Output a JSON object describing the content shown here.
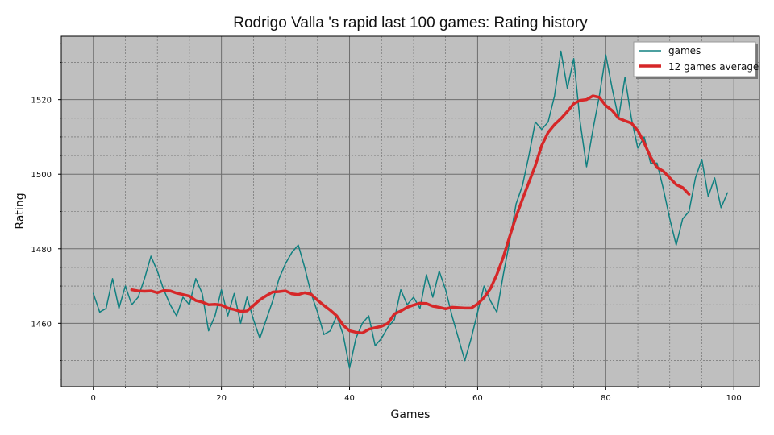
{
  "chart_data": {
    "type": "line",
    "title": "Rodrigo Valla 's rapid last 100 games: Rating history",
    "xlabel": "Games",
    "ylabel": "Rating",
    "xlim": [
      -5,
      104
    ],
    "ylim": [
      1443,
      1537
    ],
    "x_ticks": [
      0,
      20,
      40,
      60,
      80,
      100
    ],
    "y_ticks": [
      1460,
      1480,
      1500,
      1520
    ],
    "grid": true,
    "legend_position": "top-right",
    "background_color": "#bfbfbf",
    "series": [
      {
        "name": "games",
        "color": "#108080",
        "x_start": 0,
        "values": [
          1468,
          1463,
          1464,
          1472,
          1464,
          1470,
          1465,
          1467,
          1472,
          1478,
          1474,
          1469,
          1465,
          1462,
          1467,
          1465,
          1472,
          1468,
          1458,
          1462,
          1469,
          1462,
          1468,
          1460,
          1467,
          1461,
          1456,
          1461,
          1466,
          1472,
          1476,
          1479,
          1481,
          1475,
          1468,
          1463,
          1457,
          1458,
          1462,
          1457,
          1448,
          1456,
          1460,
          1462,
          1454,
          1456,
          1459,
          1461,
          1469,
          1465,
          1467,
          1464,
          1473,
          1467,
          1474,
          1469,
          1462,
          1456,
          1450,
          1456,
          1463,
          1470,
          1466,
          1463,
          1473,
          1482,
          1492,
          1497,
          1505,
          1514,
          1512,
          1514,
          1521,
          1533,
          1523,
          1531,
          1514,
          1502,
          1512,
          1521,
          1532,
          1523,
          1515,
          1526,
          1515,
          1507,
          1510,
          1503,
          1503,
          1496,
          1488,
          1481,
          1488,
          1490,
          1499,
          1504,
          1494,
          1499,
          1491,
          1495
        ]
      },
      {
        "name": "12 games average",
        "color": "#d62728",
        "x_start": 6,
        "values": [
          1469,
          1468.7,
          1468.6,
          1468.7,
          1468.2,
          1468.8,
          1468.7,
          1468.1,
          1467.7,
          1467.3,
          1466.1,
          1465.7,
          1465,
          1465.1,
          1464.9,
          1464.1,
          1463.7,
          1463.2,
          1463.3,
          1464.8,
          1466.3,
          1467.4,
          1468.4,
          1468.5,
          1468.7,
          1467.9,
          1467.7,
          1468.2,
          1467.8,
          1466.2,
          1464.8,
          1463.5,
          1462,
          1459.5,
          1458,
          1457.6,
          1457.4,
          1458.4,
          1458.8,
          1459.2,
          1460,
          1462.5,
          1463.3,
          1464.3,
          1464.9,
          1465.4,
          1465.3,
          1464.6,
          1464.3,
          1463.9,
          1464.3,
          1464.2,
          1464.1,
          1464.1,
          1465.2,
          1466.9,
          1469.3,
          1473.1,
          1477.7,
          1483.3,
          1488.6,
          1493.3,
          1497.8,
          1502.3,
          1507.7,
          1511.2,
          1513.3,
          1514.9,
          1516.8,
          1518.9,
          1519.8,
          1520,
          1521,
          1520.6,
          1518.4,
          1517.1,
          1515,
          1514.3,
          1513.7,
          1511.7,
          1508.4,
          1504.6,
          1501.8,
          1500.8,
          1499,
          1497.2,
          1496.4,
          1494.6
        ]
      }
    ]
  }
}
